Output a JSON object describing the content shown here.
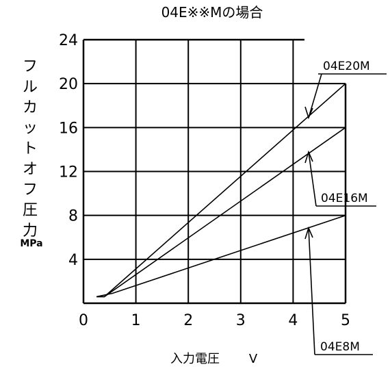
{
  "chart_data": {
    "type": "line",
    "title": "04E※※Mの場合",
    "ylabel": "フルカットオフ圧力",
    "yunit": "MPa",
    "xlabel": "入力電圧",
    "xunit": "V",
    "xlim": [
      0,
      5
    ],
    "ylim": [
      0,
      24
    ],
    "xticks": [
      "0",
      "1",
      "2",
      "3",
      "4",
      "5"
    ],
    "yticks": [
      "4",
      "8",
      "12",
      "16",
      "20",
      "24"
    ],
    "grid": true,
    "series": [
      {
        "name": "04E20M",
        "x": [
          0.25,
          0.4,
          5.0
        ],
        "y": [
          0.6,
          0.6,
          20.0
        ]
      },
      {
        "name": "04E16M",
        "x": [
          0.25,
          0.4,
          5.0
        ],
        "y": [
          0.6,
          0.6,
          16.0
        ]
      },
      {
        "name": "04E8M",
        "x": [
          0.25,
          0.55,
          5.0
        ],
        "y": [
          0.6,
          0.9,
          8.0
        ]
      }
    ]
  }
}
